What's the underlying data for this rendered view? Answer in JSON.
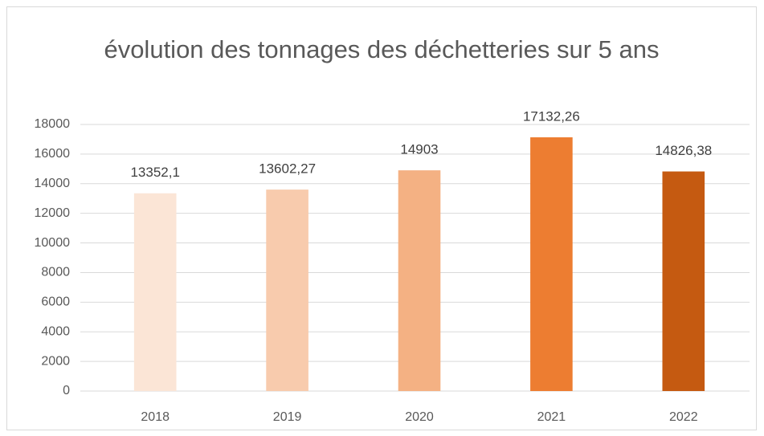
{
  "chart_data": {
    "type": "bar",
    "title": "évolution des tonnages des déchetteries sur 5 ans",
    "categories": [
      "2018",
      "2019",
      "2020",
      "2021",
      "2022"
    ],
    "values": [
      13352.1,
      13602.27,
      14903,
      17132.26,
      14826.38
    ],
    "value_labels": [
      "13352,1",
      "13602,27",
      "14903",
      "17132,26",
      "14826,38"
    ],
    "colors": [
      "#fbe5d6",
      "#f8cbad",
      "#f4b183",
      "#ed7d31",
      "#c55a11"
    ],
    "ylim": [
      0,
      18000
    ],
    "yticks": [
      0,
      2000,
      4000,
      6000,
      8000,
      10000,
      12000,
      14000,
      16000,
      18000
    ],
    "grid": true
  }
}
